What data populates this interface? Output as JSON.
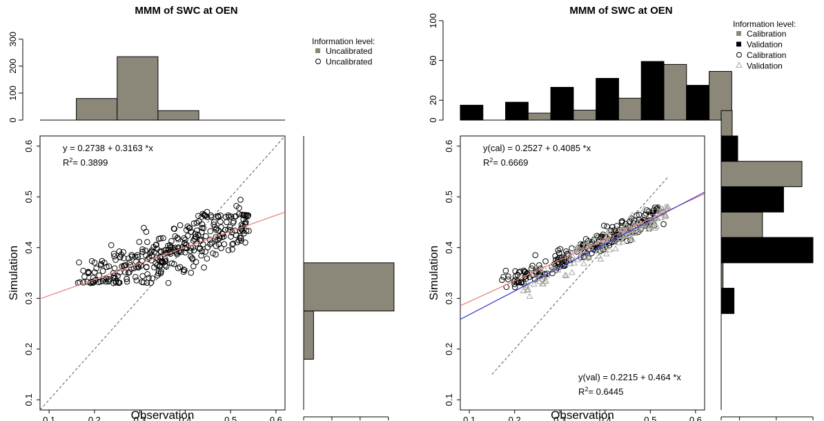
{
  "colors": {
    "calibration_bar": "#8c8879",
    "validation_bar": "#000000",
    "fit_line_cal": "#f08080",
    "fit_line_val": "#3a3ad0",
    "points_cal": "#000000",
    "points_val": "#a8a8a0",
    "one_to_one": "#555555"
  },
  "chart_data": [
    {
      "type": "scatter",
      "title": "MMM of SWC at OEN",
      "xlabel": "Observation",
      "ylabel": "Simulation",
      "xlim": [
        0.08,
        0.62
      ],
      "ylim": [
        0.08,
        0.62
      ],
      "xticks": [
        "0.1",
        "0.2",
        "0.3",
        "0.4",
        "0.5",
        "0.6"
      ],
      "yticks": [
        "0.1",
        "0.2",
        "0.3",
        "0.4",
        "0.5",
        "0.6"
      ],
      "grid": false,
      "equations": [
        {
          "text": "y =  0.2738 + 0.3163 *x",
          "r2": "= 0.3899",
          "position": "top-left"
        }
      ],
      "fit_lines": [
        {
          "series": "Uncalibrated",
          "intercept": 0.2738,
          "slope": 0.3163
        }
      ],
      "legend": {
        "title": "Information level:",
        "position": "top-right",
        "entries": [
          {
            "label": "Uncalibrated",
            "symbol": "square",
            "color": "#8c8879"
          },
          {
            "label": "Uncalibrated",
            "symbol": "circle",
            "color": "#000000"
          }
        ]
      },
      "top_histogram": {
        "yticks": [
          "0",
          "100",
          "200",
          "300"
        ],
        "ylim": [
          0,
          330
        ],
        "bins": [
          {
            "from": 0.16,
            "to": 0.25,
            "count": 80,
            "series": "Uncalibrated"
          },
          {
            "from": 0.25,
            "to": 0.34,
            "count": 235,
            "series": "Uncalibrated"
          },
          {
            "from": 0.34,
            "to": 0.43,
            "count": 35,
            "series": "Uncalibrated"
          }
        ]
      },
      "right_histogram": {
        "xticks": [
          "0",
          "100",
          "200",
          "300"
        ],
        "xlim": [
          0,
          330
        ],
        "bins": [
          {
            "from": 0.18,
            "to": 0.275,
            "count": 35,
            "series": "Uncalibrated"
          },
          {
            "from": 0.275,
            "to": 0.37,
            "count": 320,
            "series": "Uncalibrated"
          }
        ]
      },
      "series": [
        {
          "name": "Uncalibrated",
          "marker": "circle",
          "cluster": {
            "x_range": [
              0.16,
              0.54
            ],
            "count": 340,
            "seed": 11
          }
        }
      ]
    },
    {
      "type": "scatter",
      "title": "MMM of SWC at OEN",
      "xlabel": "Observation",
      "ylabel": "Simulation",
      "xlim": [
        0.08,
        0.62
      ],
      "ylim": [
        0.08,
        0.62
      ],
      "xticks": [
        "0.1",
        "0.2",
        "0.3",
        "0.4",
        "0.5",
        "0.6"
      ],
      "yticks": [
        "0.1",
        "0.2",
        "0.3",
        "0.4",
        "0.5",
        "0.6"
      ],
      "grid": false,
      "equations": [
        {
          "text": "y(cal) =  0.2527 + 0.4085 *x",
          "r2": "= 0.6669",
          "position": "top-left"
        },
        {
          "text": "y(val) =  0.2215 + 0.464 *x",
          "r2": "= 0.6445",
          "position": "bottom-right"
        }
      ],
      "fit_lines": [
        {
          "series": "Calibration",
          "intercept": 0.2527,
          "slope": 0.4085
        },
        {
          "series": "Validation",
          "intercept": 0.2215,
          "slope": 0.464
        }
      ],
      "legend": {
        "title": "Information level:",
        "position": "top-right",
        "entries": [
          {
            "label": "Calibration",
            "symbol": "square",
            "color": "#8c8879"
          },
          {
            "label": "Validation",
            "symbol": "square",
            "color": "#000000"
          },
          {
            "label": "Calibration",
            "symbol": "circle",
            "color": "#000000"
          },
          {
            "label": "Validation",
            "symbol": "triangle",
            "color": "#a8a8a0"
          }
        ]
      },
      "top_histogram": {
        "yticks": [
          "0",
          "20",
          "60",
          "100"
        ],
        "ylim": [
          0,
          100
        ],
        "bins": [
          {
            "from": 0.08,
            "to": 0.13,
            "count": 15,
            "series": "Validation"
          },
          {
            "from": 0.18,
            "to": 0.23,
            "count": 18,
            "series": "Validation"
          },
          {
            "from": 0.23,
            "to": 0.28,
            "count": 7,
            "series": "Calibration"
          },
          {
            "from": 0.28,
            "to": 0.33,
            "count": 33,
            "series": "Validation"
          },
          {
            "from": 0.33,
            "to": 0.38,
            "count": 10,
            "series": "Calibration"
          },
          {
            "from": 0.38,
            "to": 0.43,
            "count": 42,
            "series": "Validation"
          },
          {
            "from": 0.43,
            "to": 0.48,
            "count": 22,
            "series": "Calibration"
          },
          {
            "from": 0.48,
            "to": 0.53,
            "count": 59,
            "series": "Validation"
          },
          {
            "from": 0.53,
            "to": 0.58,
            "count": 56,
            "series": "Calibration"
          },
          {
            "from": 0.58,
            "to": 0.63,
            "count": 35,
            "series": "Validation"
          },
          {
            "from": 0.63,
            "to": 0.68,
            "count": 49,
            "series": "Calibration"
          }
        ]
      },
      "right_histogram": {
        "xticks": [
          "0",
          "20",
          "60",
          "100"
        ],
        "xlim": [
          0,
          100
        ],
        "bins": [
          {
            "from": 0.27,
            "to": 0.32,
            "count": 14,
            "series": "Validation"
          },
          {
            "from": 0.32,
            "to": 0.37,
            "count": 2,
            "series": "Calibration"
          },
          {
            "from": 0.37,
            "to": 0.42,
            "count": 100,
            "series": "Validation"
          },
          {
            "from": 0.42,
            "to": 0.47,
            "count": 45,
            "series": "Calibration"
          },
          {
            "from": 0.47,
            "to": 0.52,
            "count": 68,
            "series": "Validation"
          },
          {
            "from": 0.52,
            "to": 0.57,
            "count": 88,
            "series": "Calibration"
          },
          {
            "from": 0.57,
            "to": 0.62,
            "count": 18,
            "series": "Validation"
          },
          {
            "from": 0.62,
            "to": 0.67,
            "count": 12,
            "series": "Calibration"
          }
        ]
      },
      "series": [
        {
          "name": "Calibration",
          "marker": "circle",
          "cluster": {
            "x_range": [
              0.17,
              0.53
            ],
            "count": 230,
            "seed": 23
          }
        },
        {
          "name": "Validation",
          "marker": "triangle",
          "cluster": {
            "x_range": [
              0.21,
              0.54
            ],
            "count": 130,
            "seed": 37
          }
        }
      ]
    }
  ]
}
